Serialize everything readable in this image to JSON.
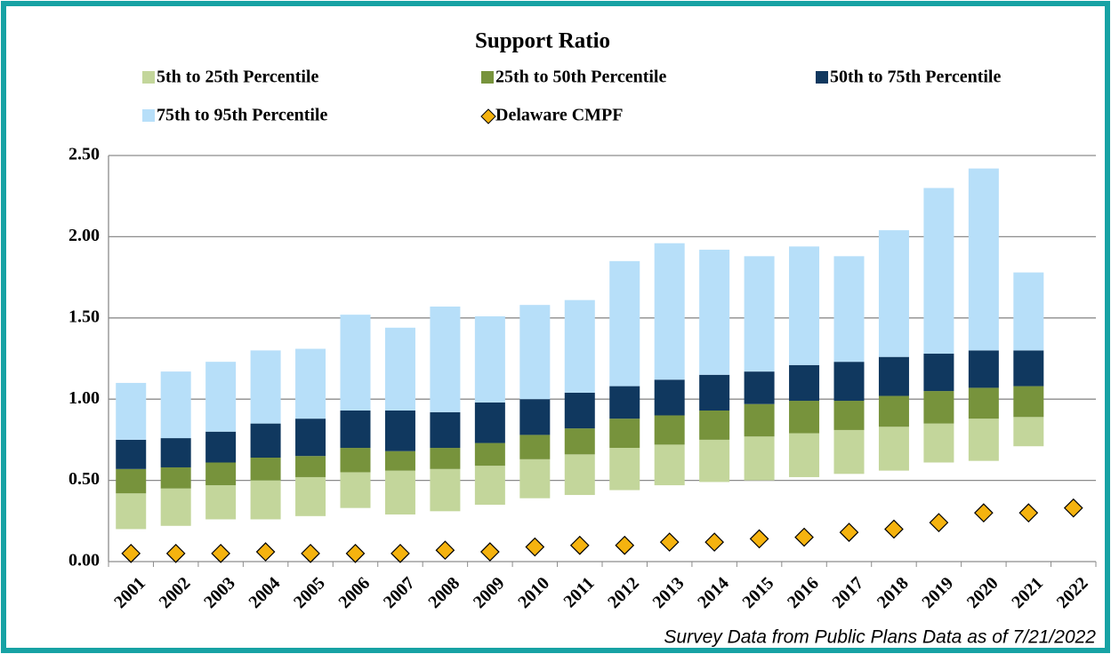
{
  "chart_data": {
    "type": "bar",
    "stacked": true,
    "title": "Support Ratio",
    "note": "Survey Data from Public Plans Data as of 7/21/2022",
    "categories": [
      "2001",
      "2002",
      "2003",
      "2004",
      "2005",
      "2006",
      "2007",
      "2008",
      "2009",
      "2010",
      "2011",
      "2012",
      "2013",
      "2014",
      "2015",
      "2016",
      "2017",
      "2018",
      "2019",
      "2020",
      "2021",
      "2022"
    ],
    "base": [
      0.2,
      0.22,
      0.26,
      0.26,
      0.28,
      0.33,
      0.29,
      0.31,
      0.35,
      0.39,
      0.41,
      0.44,
      0.47,
      0.49,
      0.5,
      0.52,
      0.54,
      0.56,
      0.61,
      0.62,
      0.71,
      null
    ],
    "series": [
      {
        "name": "5th to 25th Percentile",
        "color": "#c3d69b",
        "values": [
          0.22,
          0.23,
          0.21,
          0.24,
          0.24,
          0.22,
          0.27,
          0.26,
          0.24,
          0.24,
          0.25,
          0.26,
          0.25,
          0.26,
          0.27,
          0.27,
          0.27,
          0.27,
          0.24,
          0.26,
          0.18,
          null
        ]
      },
      {
        "name": "25th to 50th Percentile",
        "color": "#77933c",
        "values": [
          0.15,
          0.13,
          0.14,
          0.14,
          0.13,
          0.15,
          0.12,
          0.13,
          0.14,
          0.15,
          0.16,
          0.18,
          0.18,
          0.18,
          0.2,
          0.2,
          0.18,
          0.19,
          0.2,
          0.19,
          0.19,
          null
        ]
      },
      {
        "name": "50th to 75th Percentile",
        "color": "#10385f",
        "values": [
          0.18,
          0.18,
          0.19,
          0.21,
          0.23,
          0.23,
          0.25,
          0.22,
          0.25,
          0.22,
          0.22,
          0.2,
          0.22,
          0.22,
          0.2,
          0.22,
          0.24,
          0.24,
          0.23,
          0.23,
          0.22,
          null
        ]
      },
      {
        "name": "75th to 95th Percentile",
        "color": "#b7dff9",
        "values": [
          0.35,
          0.41,
          0.43,
          0.45,
          0.43,
          0.59,
          0.51,
          0.65,
          0.53,
          0.58,
          0.57,
          0.77,
          0.84,
          0.77,
          0.71,
          0.73,
          0.65,
          0.78,
          1.02,
          1.12,
          0.48,
          null
        ]
      },
      {
        "name": "Delaware CMPF",
        "type": "scatter",
        "marker": "diamond",
        "color": "#f5b30f",
        "values": [
          0.05,
          0.05,
          0.05,
          0.06,
          0.05,
          0.05,
          0.05,
          0.07,
          0.06,
          0.09,
          0.1,
          0.1,
          0.12,
          0.12,
          0.14,
          0.15,
          0.18,
          0.2,
          0.24,
          0.3,
          0.3,
          0.33
        ]
      }
    ],
    "ylim": [
      0,
      2.5
    ],
    "yticks": [
      {
        "value": 0,
        "label": "0.00"
      },
      {
        "value": 0.5,
        "label": "0.50"
      },
      {
        "value": 1,
        "label": "1.00"
      },
      {
        "value": 1.5,
        "label": "1.50"
      },
      {
        "value": 2,
        "label": "2.00"
      },
      {
        "value": 2.5,
        "label": "2.50"
      }
    ],
    "grid": true
  }
}
